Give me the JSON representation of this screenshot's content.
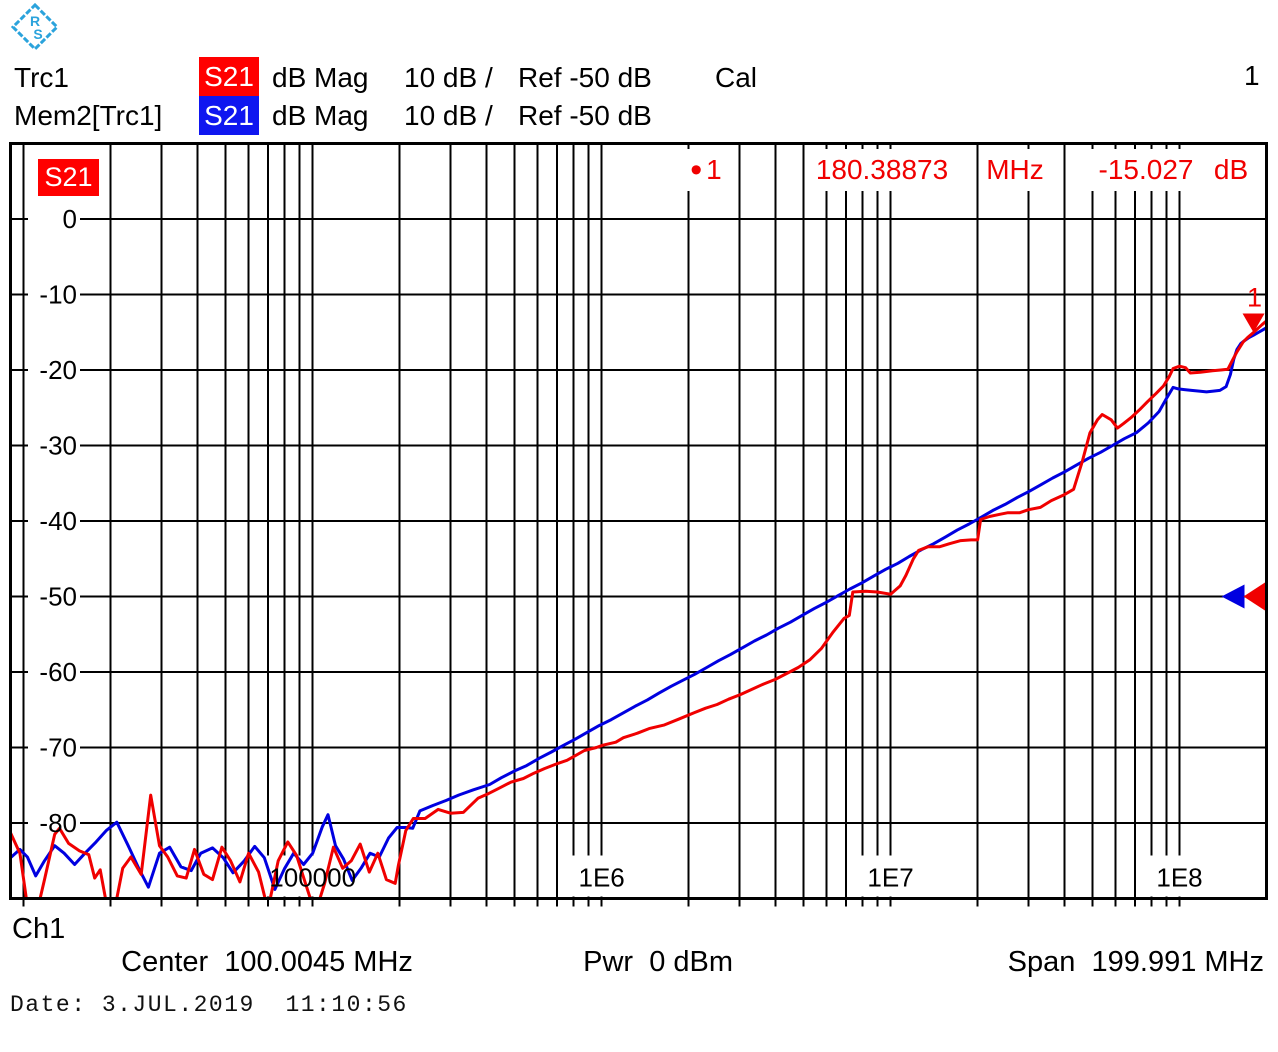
{
  "logo": {
    "name": "rohde-schwarz-logo",
    "color": "#2ba3dc"
  },
  "header": {
    "line1": {
      "trace": "Trc1",
      "meas": "S21",
      "format": "dB Mag",
      "scale": "10 dB /",
      "ref": "Ref -50 dB",
      "cal": "Cal"
    },
    "line2": {
      "trace": "Mem2[Trc1]",
      "meas": "S21",
      "format": "dB Mag",
      "scale": "10 dB /",
      "ref": "Ref -50 dB"
    },
    "screen_number": "1"
  },
  "colors": {
    "trace1": "#f00000",
    "memory_trace": "#0000e0",
    "chip_red": "#ff0000",
    "chip_blue": "#0f16f0",
    "grid": "#000000",
    "marker_text": "#f00000"
  },
  "chart": {
    "trace_label": "S21"
  },
  "marker_readout": {
    "bullet": "•",
    "id": "1",
    "freq": "180.38873",
    "freq_unit": "MHz",
    "value": "-15.027",
    "value_unit": "dB"
  },
  "footer": {
    "channel": "Ch1",
    "center_label": "Center",
    "center_value": "100.0045 MHz",
    "pwr_label": "Pwr",
    "pwr_value": "0 dBm",
    "span_label": "Span",
    "span_value": "199.991 MHz"
  },
  "status": {
    "date_line": "Date: 3.JUL.2019  11:10:56"
  },
  "chart_data": {
    "type": "line",
    "title": "S21 dB Mag, 10 dB/div, Ref -50 dB",
    "x_axis": {
      "scale": "log",
      "unit": "Hz",
      "min_hz": 9000,
      "max_hz": 200000000,
      "ticks": [
        {
          "hz": 100000,
          "label": "100000"
        },
        {
          "hz": 1000000,
          "label": "1E6"
        },
        {
          "hz": 10000000,
          "label": "1E7"
        },
        {
          "hz": 100000000,
          "label": "1E8"
        }
      ]
    },
    "y_axis": {
      "unit": "dB",
      "top_db": 10,
      "bottom_db": -90,
      "db_per_div": 10,
      "ref_db": -50,
      "tick_labels": [
        "0",
        "-10",
        "-20",
        "-30",
        "-40",
        "-50",
        "-60",
        "-70",
        "-80"
      ]
    },
    "marker": {
      "id": "1",
      "freq_hz": 180388730,
      "value_db": -15.027
    },
    "series": [
      {
        "name": "Mem2[Trc1] S21",
        "color": "#0000e0",
        "points": [
          [
            9000,
            -84.6
          ],
          [
            9700,
            -83.5
          ],
          [
            10300,
            -84.5
          ],
          [
            11000,
            -87
          ],
          [
            11800,
            -85
          ],
          [
            12800,
            -83
          ],
          [
            13800,
            -84
          ],
          [
            15000,
            -85.5
          ],
          [
            16300,
            -84
          ],
          [
            17800,
            -82.5
          ],
          [
            19300,
            -81
          ],
          [
            21000,
            -79.9
          ],
          [
            23000,
            -83
          ],
          [
            25000,
            -86
          ],
          [
            27000,
            -88.5
          ],
          [
            29500,
            -84
          ],
          [
            32000,
            -83.2
          ],
          [
            35000,
            -85.8
          ],
          [
            38000,
            -86.3
          ],
          [
            41000,
            -84
          ],
          [
            45000,
            -83.3
          ],
          [
            49000,
            -84.6
          ],
          [
            53000,
            -86.6
          ],
          [
            58000,
            -85
          ],
          [
            63000,
            -83.1
          ],
          [
            68000,
            -84.6
          ],
          [
            74000,
            -88.8
          ],
          [
            80000,
            -86
          ],
          [
            86000,
            -84
          ],
          [
            93000,
            -85.5
          ],
          [
            100000,
            -84
          ],
          [
            108000,
            -80.5
          ],
          [
            113000,
            -78.9
          ],
          [
            120000,
            -83
          ],
          [
            128000,
            -84.8
          ],
          [
            137000,
            -87.6
          ],
          [
            147000,
            -86
          ],
          [
            158000,
            -84
          ],
          [
            170000,
            -84.5
          ],
          [
            183000,
            -82
          ],
          [
            196000,
            -80.6
          ],
          [
            210000,
            -80.6
          ],
          [
            222000,
            -80.7
          ],
          [
            235000,
            -78.4
          ],
          [
            260000,
            -77.7
          ],
          [
            290000,
            -77.0
          ],
          [
            320000,
            -76.3
          ],
          [
            360000,
            -75.6
          ],
          [
            410000,
            -74.9
          ],
          [
            450000,
            -74.0
          ],
          [
            500000,
            -73.1
          ],
          [
            550000,
            -72.4
          ],
          [
            610000,
            -71.4
          ],
          [
            670000,
            -70.6
          ],
          [
            740000,
            -69.7
          ],
          [
            810000,
            -68.9
          ],
          [
            890000,
            -68.0
          ],
          [
            980000,
            -67.1
          ],
          [
            1080000,
            -66.3
          ],
          [
            1190000,
            -65.4
          ],
          [
            1310000,
            -64.5
          ],
          [
            1440000,
            -63.7
          ],
          [
            1580000,
            -62.8
          ],
          [
            1740000,
            -61.9
          ],
          [
            1910000,
            -61.1
          ],
          [
            2100000,
            -60.3
          ],
          [
            2310000,
            -59.4
          ],
          [
            2540000,
            -58.5
          ],
          [
            2790000,
            -57.7
          ],
          [
            3070000,
            -56.8
          ],
          [
            3380000,
            -55.9
          ],
          [
            3720000,
            -55.1
          ],
          [
            4090000,
            -54.2
          ],
          [
            4500000,
            -53.4
          ],
          [
            4940000,
            -52.5
          ],
          [
            5440000,
            -51.6
          ],
          [
            5980000,
            -50.8
          ],
          [
            6580000,
            -49.9
          ],
          [
            7230000,
            -49.0
          ],
          [
            7950000,
            -48.2
          ],
          [
            8740000,
            -47.3
          ],
          [
            9620000,
            -46.4
          ],
          [
            10600000,
            -45.6
          ],
          [
            11600000,
            -44.7
          ],
          [
            12800000,
            -43.8
          ],
          [
            14100000,
            -43.0
          ],
          [
            15500000,
            -42.1
          ],
          [
            17000000,
            -41.2
          ],
          [
            18700000,
            -40.4
          ],
          [
            20600000,
            -39.5
          ],
          [
            22600000,
            -38.6
          ],
          [
            24900000,
            -37.8
          ],
          [
            27400000,
            -36.9
          ],
          [
            30100000,
            -36.1
          ],
          [
            33100000,
            -35.2
          ],
          [
            36400000,
            -34.3
          ],
          [
            40000000,
            -33.5
          ],
          [
            44000000,
            -32.6
          ],
          [
            48400000,
            -31.7
          ],
          [
            53300000,
            -30.9
          ],
          [
            58600000,
            -30.0
          ],
          [
            64400000,
            -29.1
          ],
          [
            70900000,
            -28.3
          ],
          [
            78000000,
            -27.0
          ],
          [
            85000000,
            -25.5
          ],
          [
            90000000,
            -23.8
          ],
          [
            95000000,
            -22.3
          ],
          [
            99000000,
            -22.5
          ],
          [
            104000000,
            -22.6
          ],
          [
            110000000,
            -22.7
          ],
          [
            117000000,
            -22.8
          ],
          [
            124000000,
            -22.9
          ],
          [
            131000000,
            -22.8
          ],
          [
            138000000,
            -22.7
          ],
          [
            145000000,
            -22.2
          ],
          [
            150000000,
            -20.6
          ],
          [
            154000000,
            -18.6
          ],
          [
            158000000,
            -17.3
          ],
          [
            163000000,
            -16.5
          ],
          [
            168000000,
            -16.1
          ],
          [
            174000000,
            -15.7
          ],
          [
            180000000,
            -15.4
          ],
          [
            186000000,
            -15.1
          ],
          [
            192000000,
            -14.8
          ],
          [
            200000000,
            -14.4
          ]
        ]
      },
      {
        "name": "Trc1 S21",
        "color": "#f00000",
        "points": [
          [
            9000,
            -81.3
          ],
          [
            9700,
            -84
          ],
          [
            10300,
            -91
          ],
          [
            11000,
            -92.5
          ],
          [
            11800,
            -87.5
          ],
          [
            12800,
            -81.5
          ],
          [
            13300,
            -80.7
          ],
          [
            14300,
            -82.7
          ],
          [
            15600,
            -83.7
          ],
          [
            16800,
            -84.2
          ],
          [
            17600,
            -87.3
          ],
          [
            18400,
            -86.2
          ],
          [
            19300,
            -90.5
          ],
          [
            20500,
            -92
          ],
          [
            22000,
            -86
          ],
          [
            23500,
            -84.5
          ],
          [
            25500,
            -86.8
          ],
          [
            27500,
            -76.3
          ],
          [
            29500,
            -83
          ],
          [
            31500,
            -84.5
          ],
          [
            34000,
            -87
          ],
          [
            36500,
            -87.3
          ],
          [
            39000,
            -83.5
          ],
          [
            42000,
            -86.8
          ],
          [
            45000,
            -87.5
          ],
          [
            48500,
            -83.2
          ],
          [
            52000,
            -85
          ],
          [
            56000,
            -87.8
          ],
          [
            60000,
            -84
          ],
          [
            65000,
            -86.5
          ],
          [
            70000,
            -91.5
          ],
          [
            76000,
            -85
          ],
          [
            82000,
            -82.5
          ],
          [
            88000,
            -84.3
          ],
          [
            95000,
            -88.3
          ],
          [
            102000,
            -92
          ],
          [
            110000,
            -88
          ],
          [
            118000,
            -83.2
          ],
          [
            127000,
            -86
          ],
          [
            136000,
            -85
          ],
          [
            146000,
            -82.8
          ],
          [
            157000,
            -86.5
          ],
          [
            168000,
            -84
          ],
          [
            180000,
            -87.5
          ],
          [
            193000,
            -88
          ],
          [
            198000,
            -85.6
          ],
          [
            210000,
            -81
          ],
          [
            223000,
            -79.4
          ],
          [
            245000,
            -79.4
          ],
          [
            272000,
            -78.2
          ],
          [
            300000,
            -78.7
          ],
          [
            332000,
            -78.6
          ],
          [
            374000,
            -76.7
          ],
          [
            406000,
            -76.1
          ],
          [
            441000,
            -75.4
          ],
          [
            485000,
            -74.6
          ],
          [
            536000,
            -74.1
          ],
          [
            583000,
            -73.4
          ],
          [
            634000,
            -72.8
          ],
          [
            706000,
            -72.1
          ],
          [
            759000,
            -71.7
          ],
          [
            818000,
            -71.0
          ],
          [
            872000,
            -70.4
          ],
          [
            959000,
            -70.0
          ],
          [
            1010000,
            -69.7
          ],
          [
            1120000,
            -69.3
          ],
          [
            1190000,
            -68.7
          ],
          [
            1330000,
            -68.1
          ],
          [
            1460000,
            -67.5
          ],
          [
            1650000,
            -67.0
          ],
          [
            1860000,
            -66.2
          ],
          [
            2090000,
            -65.4
          ],
          [
            2290000,
            -64.8
          ],
          [
            2510000,
            -64.3
          ],
          [
            2750000,
            -63.6
          ],
          [
            3020000,
            -63.0
          ],
          [
            3310000,
            -62.3
          ],
          [
            3630000,
            -61.6
          ],
          [
            3980000,
            -61.0
          ],
          [
            4370000,
            -60.2
          ],
          [
            4790000,
            -59.4
          ],
          [
            5250000,
            -58.4
          ],
          [
            5760000,
            -56.9
          ],
          [
            6300000,
            -54.8
          ],
          [
            6900000,
            -52.9
          ],
          [
            7200000,
            -52.5
          ],
          [
            7400000,
            -49.4
          ],
          [
            8200000,
            -49.3
          ],
          [
            9000000,
            -49.4
          ],
          [
            10000000,
            -49.7
          ],
          [
            10800000,
            -48.6
          ],
          [
            11300000,
            -47.2
          ],
          [
            12000000,
            -45.0
          ],
          [
            12500000,
            -43.9
          ],
          [
            13500000,
            -43.4
          ],
          [
            14800000,
            -43.4
          ],
          [
            16000000,
            -43.0
          ],
          [
            17500000,
            -42.6
          ],
          [
            19000000,
            -42.5
          ],
          [
            20000000,
            -42.5
          ],
          [
            20500000,
            -39.8
          ],
          [
            22000000,
            -39.4
          ],
          [
            24000000,
            -39.1
          ],
          [
            25500000,
            -38.9
          ],
          [
            28000000,
            -38.9
          ],
          [
            30000000,
            -38.5
          ],
          [
            33000000,
            -38.2
          ],
          [
            36000000,
            -37.3
          ],
          [
            40000000,
            -36.5
          ],
          [
            43000000,
            -35.8
          ],
          [
            46000000,
            -32.2
          ],
          [
            49000000,
            -28.3
          ],
          [
            52000000,
            -26.6
          ],
          [
            54000000,
            -25.9
          ],
          [
            58000000,
            -26.6
          ],
          [
            61000000,
            -27.7
          ],
          [
            64000000,
            -27.1
          ],
          [
            68000000,
            -26.3
          ],
          [
            73000000,
            -25.2
          ],
          [
            77500000,
            -24.2
          ],
          [
            83000000,
            -23.1
          ],
          [
            88000000,
            -22.1
          ],
          [
            92000000,
            -20.9
          ],
          [
            95000000,
            -19.8
          ],
          [
            100000000,
            -19.5
          ],
          [
            105000000,
            -19.7
          ],
          [
            109000000,
            -20.4
          ],
          [
            118000000,
            -20.3
          ],
          [
            130000000,
            -20.1
          ],
          [
            139000000,
            -20.0
          ],
          [
            147000000,
            -19.9
          ],
          [
            152000000,
            -18.8
          ],
          [
            158000000,
            -17.6
          ],
          [
            166000000,
            -16.3
          ],
          [
            172000000,
            -15.7
          ],
          [
            180388730,
            -15.03
          ],
          [
            188000000,
            -14.4
          ],
          [
            193000000,
            -14.0
          ],
          [
            200000000,
            -13.5
          ]
        ]
      }
    ]
  }
}
